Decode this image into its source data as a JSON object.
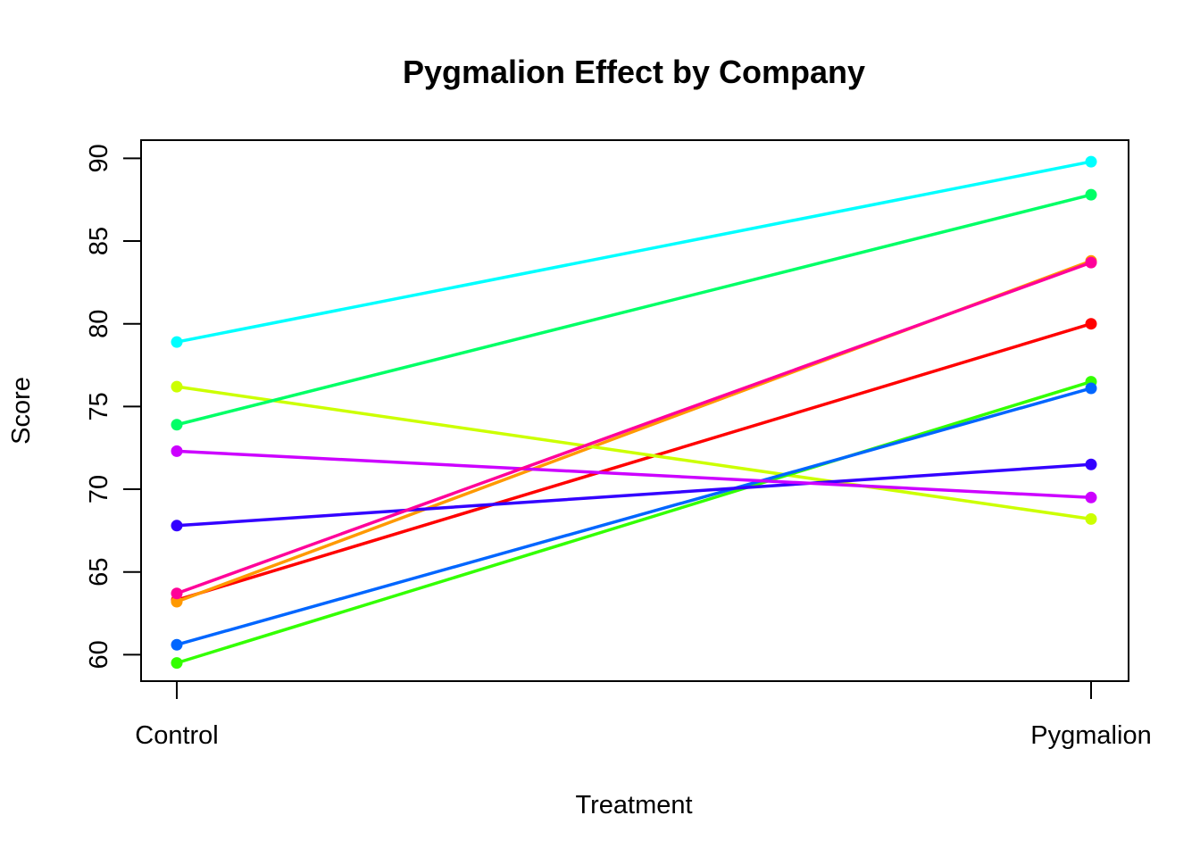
{
  "chart_data": {
    "type": "line",
    "title": "Pygmalion Effect by Company",
    "xlabel": "Treatment",
    "ylabel": "Score",
    "categories": [
      "Control",
      "Pygmalion"
    ],
    "ylim": [
      58.4,
      91.1
    ],
    "yticks": [
      60,
      65,
      70,
      75,
      80,
      85,
      90
    ],
    "grid": false,
    "series": [
      {
        "color": "#FF0000",
        "values": [
          63.3,
          80.0
        ]
      },
      {
        "color": "#FF9900",
        "values": [
          63.2,
          83.8
        ]
      },
      {
        "color": "#CCFF00",
        "values": [
          76.2,
          68.2
        ]
      },
      {
        "color": "#33FF00",
        "values": [
          59.5,
          76.5
        ]
      },
      {
        "color": "#00FF66",
        "values": [
          73.9,
          87.8
        ]
      },
      {
        "color": "#00FFFF",
        "values": [
          78.9,
          89.8
        ]
      },
      {
        "color": "#0066FF",
        "values": [
          60.6,
          76.1
        ]
      },
      {
        "color": "#3300FF",
        "values": [
          67.8,
          71.5
        ]
      },
      {
        "color": "#CC00FF",
        "values": [
          72.3,
          69.5
        ]
      },
      {
        "color": "#FF0099",
        "values": [
          63.7,
          83.7
        ]
      }
    ]
  }
}
